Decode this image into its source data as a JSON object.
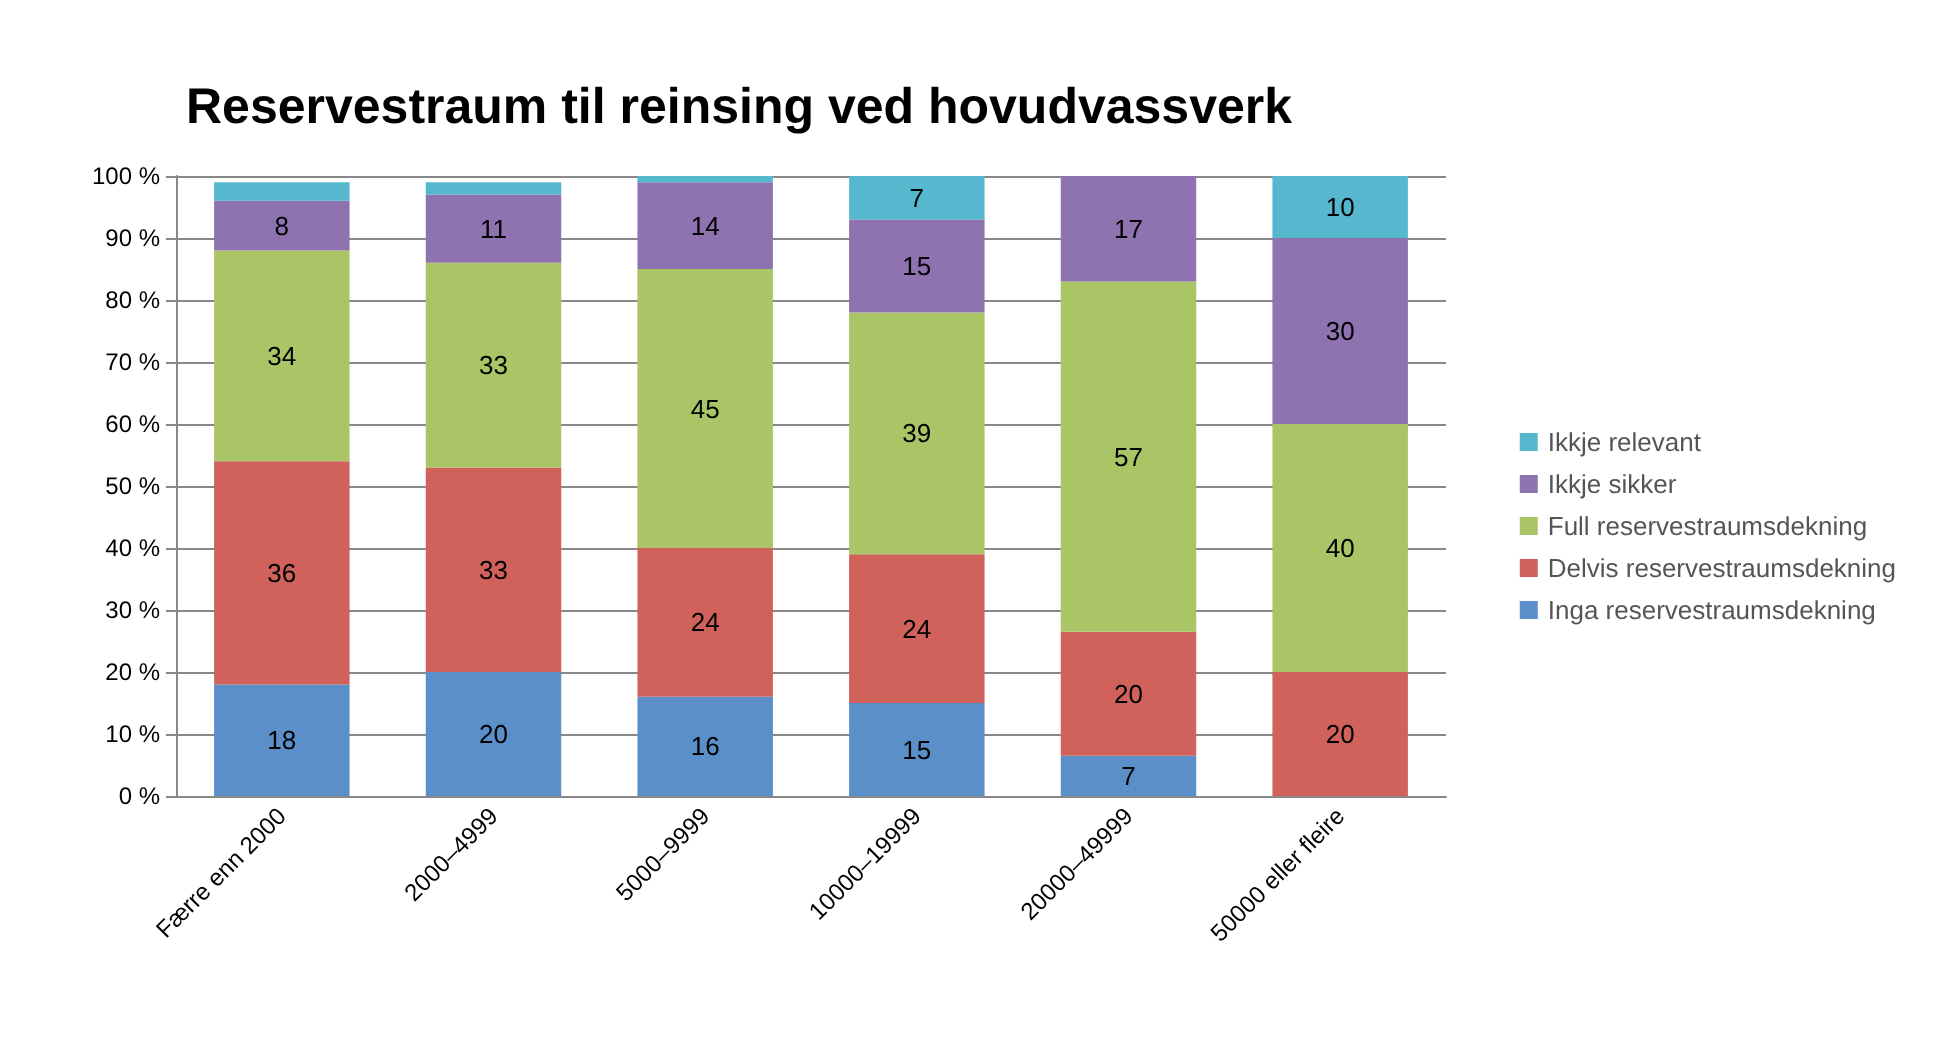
{
  "chart_data": {
    "type": "bar",
    "title": "Reservestraum til reinsing ved hovudvassverk",
    "stacked": true,
    "categories": [
      "Færre enn 2000",
      "2000–4999",
      "5000–9999",
      "10000–19999",
      "20000–49999",
      "50000 eller fleire"
    ],
    "series": [
      {
        "name": "Inga reservestraumsdekning",
        "color": "#5b8fc9",
        "values": [
          18,
          20,
          16,
          15,
          6.5,
          0
        ],
        "value_labels": [
          "18",
          "20",
          "16",
          "15",
          "7",
          null
        ]
      },
      {
        "name": "Delvis reservestraumsdekning",
        "color": "#d0625b",
        "values": [
          36,
          33,
          24,
          24,
          20,
          20
        ],
        "value_labels": [
          "36",
          "33",
          "24",
          "24",
          "20",
          "20"
        ]
      },
      {
        "name": "Full reservestraumsdekning",
        "color": "#a9c566",
        "values": [
          34,
          33,
          45,
          39,
          56.5,
          40
        ],
        "value_labels": [
          "34",
          "33",
          "45",
          "39",
          "57",
          "40"
        ]
      },
      {
        "name": "Ikkje sikker",
        "color": "#8e73b0",
        "values": [
          8,
          11,
          14,
          15,
          17,
          30
        ],
        "value_labels": [
          "8",
          "11",
          "14",
          "15",
          "17",
          "30"
        ]
      },
      {
        "name": "Ikkje relevant",
        "color": "#55b8cf",
        "values": [
          3,
          2,
          1,
          7,
          0,
          10
        ],
        "value_labels": [
          null,
          null,
          null,
          "7",
          null,
          "10"
        ]
      }
    ],
    "ylim": [
      0,
      100
    ],
    "yticks": [
      {
        "value": 0,
        "label": "0 %"
      },
      {
        "value": 10,
        "label": "10 %"
      },
      {
        "value": 20,
        "label": "20 %"
      },
      {
        "value": 30,
        "label": "30 %"
      },
      {
        "value": 40,
        "label": "40 %"
      },
      {
        "value": 50,
        "label": "50 %"
      },
      {
        "value": 60,
        "label": "60 %"
      },
      {
        "value": 70,
        "label": "70 %"
      },
      {
        "value": 80,
        "label": "80 %"
      },
      {
        "value": 90,
        "label": "90 %"
      },
      {
        "value": 100,
        "label": "100 %"
      }
    ],
    "grid": "y",
    "legend": "right"
  }
}
